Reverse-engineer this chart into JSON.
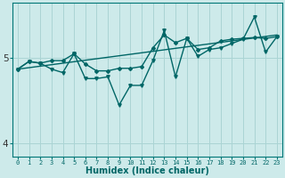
{
  "xlabel": "Humidex (Indice chaleur)",
  "x": [
    0,
    1,
    2,
    3,
    4,
    5,
    6,
    7,
    8,
    9,
    10,
    11,
    12,
    13,
    14,
    15,
    16,
    17,
    18,
    19,
    20,
    21,
    22,
    23
  ],
  "y_smooth": [
    4.87,
    4.96,
    4.94,
    4.97,
    4.97,
    5.05,
    4.93,
    4.85,
    4.85,
    4.88,
    4.88,
    4.9,
    5.12,
    5.27,
    5.18,
    5.23,
    5.1,
    5.12,
    5.2,
    5.22,
    5.23,
    5.24,
    5.23,
    5.25
  ],
  "y_volatile": [
    4.87,
    4.96,
    4.94,
    4.87,
    4.83,
    5.05,
    4.76,
    4.76,
    4.78,
    4.45,
    4.68,
    4.68,
    4.97,
    5.32,
    4.78,
    5.23,
    5.02,
    5.1,
    5.12,
    5.17,
    5.22,
    5.48,
    5.07,
    5.25
  ],
  "trend_x": [
    0,
    23
  ],
  "trend_y": [
    4.87,
    5.27
  ],
  "bg_color": "#cdeaea",
  "line_color": "#006666",
  "grid_color": "#aad4d4",
  "ylim": [
    3.85,
    5.65
  ],
  "xlim": [
    -0.5,
    23.5
  ],
  "yticks": [
    4,
    5
  ],
  "xticks": [
    0,
    1,
    2,
    3,
    4,
    5,
    6,
    7,
    8,
    9,
    10,
    11,
    12,
    13,
    14,
    15,
    16,
    17,
    18,
    19,
    20,
    21,
    22,
    23
  ],
  "xtick_fontsize": 5.0,
  "ytick_fontsize": 7.5,
  "xlabel_fontsize": 7.0
}
